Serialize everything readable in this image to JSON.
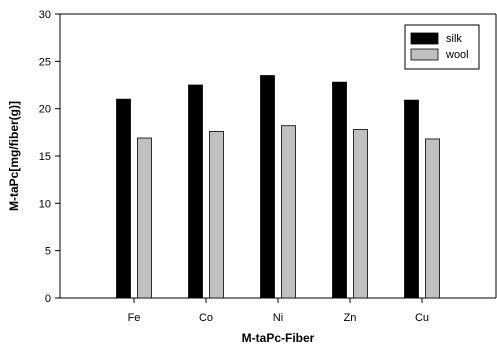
{
  "chart_data": {
    "type": "bar",
    "categories": [
      "Fe",
      "Co",
      "Ni",
      "Zn",
      "Cu"
    ],
    "series": [
      {
        "name": "silk",
        "values": [
          21.0,
          22.5,
          23.5,
          22.8,
          20.9
        ],
        "color": "#000000"
      },
      {
        "name": "wool",
        "values": [
          16.9,
          17.6,
          18.2,
          17.8,
          16.8
        ],
        "color": "#c0c0c0"
      }
    ],
    "xlabel": "M-taPc-Fiber",
    "ylabel": "M-taPc[mg/fiber(g)]",
    "ylim": [
      0,
      30
    ],
    "yticks": [
      0,
      5,
      10,
      15,
      20,
      25,
      30
    ],
    "grid": false,
    "legend_position": "top-right"
  }
}
